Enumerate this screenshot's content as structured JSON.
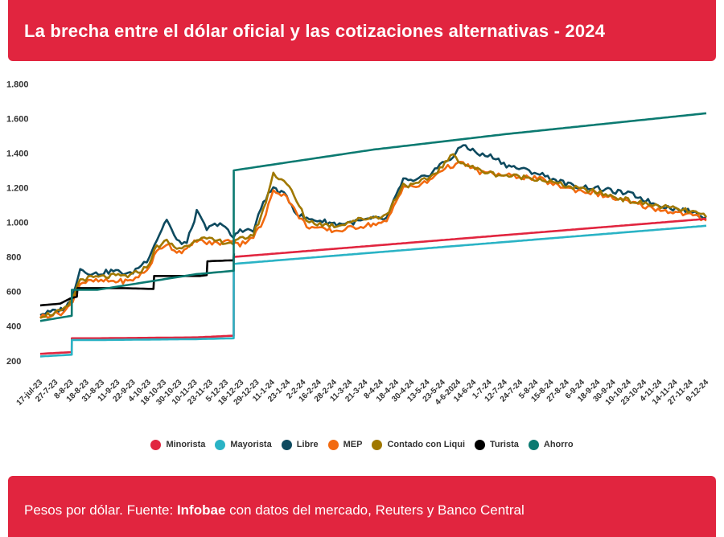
{
  "header": {
    "title": "La brecha entre el dólar oficial y las cotizaciones alternativas - 2024"
  },
  "footer": {
    "prefix": "Pesos por dólar. Fuente: ",
    "source": "Infobae",
    "suffix": " con datos del mercado, Reuters y Banco Central"
  },
  "chart_data": {
    "type": "line",
    "title": "La brecha entre el dólar oficial y las cotizaciones alternativas - 2024",
    "xlabel": "",
    "ylabel": "",
    "ylim": [
      120,
      1820
    ],
    "yticks": [
      200,
      400,
      600,
      800,
      1000,
      1200,
      1400,
      1600,
      1800
    ],
    "ytick_labels": [
      "200",
      "400",
      "600",
      "800",
      "1.000",
      "1.200",
      "1.400",
      "1.600",
      "1.800"
    ],
    "grid": false,
    "legend_position": "bottom",
    "xtick_labels": [
      "17-jul-23",
      "27-7-23",
      "8-8-23",
      "18-8-23",
      "31-8-23",
      "11-9-23",
      "22-9-23",
      "4-10-23",
      "18-10-23",
      "30-10-23",
      "10-11-23",
      "23-11-23",
      "5-12-23",
      "18-12-23",
      "29-12-23",
      "11-1-24",
      "23-1-24",
      "2-2-24",
      "16-2-24",
      "28-2-24",
      "11-3-24",
      "21-3-24",
      "8-4-24",
      "18-4-24",
      "30-4-24",
      "13-5-24",
      "23-5-24",
      "4-6-2024",
      "14-6-24",
      "1-7-24",
      "12-7-24",
      "24-7-24",
      "5-8-24",
      "15-8-24",
      "27-8-24",
      "6-9-24",
      "18-9-24",
      "30-9-24",
      "10-10-24",
      "23-10-24",
      "4-11-24",
      "14-11-24",
      "27-11-24",
      "9-12-24"
    ],
    "series": [
      {
        "name": "Minorista",
        "color": "#e1253f",
        "x": [
          0,
          0.0474,
          0.0475,
          0.0857,
          0.2333,
          0.2905,
          0.2906,
          1
        ],
        "y": [
          240,
          250,
          330,
          330,
          335,
          345,
          800,
          1020
        ]
      },
      {
        "name": "Mayorista",
        "color": "#2ab3c5",
        "x": [
          0,
          0.0474,
          0.0475,
          0.0857,
          0.2333,
          0.2905,
          0.2906,
          1
        ],
        "y": [
          225,
          235,
          320,
          320,
          325,
          330,
          760,
          980
        ]
      },
      {
        "name": "Libre",
        "color": "#0e4a5f",
        "x": [
          0,
          0.015,
          0.035,
          0.045,
          0.06,
          0.08,
          0.11,
          0.135,
          0.16,
          0.175,
          0.19,
          0.205,
          0.22,
          0.235,
          0.25,
          0.27,
          0.29,
          0.3,
          0.32,
          0.335,
          0.35,
          0.37,
          0.385,
          0.4,
          0.42,
          0.445,
          0.47,
          0.5,
          0.52,
          0.545,
          0.56,
          0.585,
          0.6,
          0.62,
          0.635,
          0.66,
          0.68,
          0.7,
          0.73,
          0.75,
          0.77,
          0.8,
          0.83,
          0.86,
          0.89,
          0.92,
          0.95,
          0.98,
          1
        ],
        "y": [
          470,
          480,
          500,
          540,
          730,
          700,
          720,
          700,
          780,
          900,
          1020,
          890,
          880,
          1060,
          960,
          1000,
          910,
          960,
          950,
          1120,
          1200,
          1150,
          1050,
          1020,
          1010,
          990,
          1000,
          1020,
          1020,
          1250,
          1230,
          1280,
          1330,
          1380,
          1450,
          1390,
          1380,
          1330,
          1300,
          1280,
          1250,
          1210,
          1200,
          1180,
          1160,
          1110,
          1080,
          1060,
          1030
        ]
      },
      {
        "name": "MEP",
        "color": "#f26a10",
        "x": [
          0,
          0.015,
          0.035,
          0.045,
          0.06,
          0.08,
          0.11,
          0.135,
          0.16,
          0.175,
          0.19,
          0.205,
          0.22,
          0.235,
          0.25,
          0.27,
          0.29,
          0.3,
          0.32,
          0.335,
          0.35,
          0.37,
          0.385,
          0.4,
          0.42,
          0.445,
          0.47,
          0.5,
          0.52,
          0.545,
          0.56,
          0.585,
          0.6,
          0.62,
          0.635,
          0.66,
          0.68,
          0.7,
          0.73,
          0.75,
          0.77,
          0.8,
          0.83,
          0.86,
          0.89,
          0.92,
          0.95,
          0.98,
          1
        ],
        "y": [
          455,
          465,
          480,
          520,
          650,
          660,
          660,
          660,
          720,
          830,
          880,
          830,
          840,
          900,
          880,
          880,
          900,
          870,
          920,
          1000,
          1190,
          1150,
          1050,
          980,
          960,
          950,
          970,
          990,
          1000,
          1210,
          1200,
          1240,
          1300,
          1330,
          1340,
          1290,
          1280,
          1270,
          1260,
          1250,
          1220,
          1190,
          1170,
          1140,
          1110,
          1080,
          1060,
          1040,
          1010
        ]
      },
      {
        "name": "Contado con Liqui",
        "color": "#a07800",
        "x": [
          0,
          0.015,
          0.035,
          0.045,
          0.06,
          0.08,
          0.11,
          0.135,
          0.16,
          0.175,
          0.19,
          0.205,
          0.22,
          0.235,
          0.25,
          0.27,
          0.29,
          0.3,
          0.32,
          0.335,
          0.35,
          0.37,
          0.385,
          0.4,
          0.42,
          0.445,
          0.47,
          0.5,
          0.52,
          0.545,
          0.56,
          0.585,
          0.6,
          0.62,
          0.635,
          0.66,
          0.68,
          0.7,
          0.73,
          0.75,
          0.77,
          0.8,
          0.83,
          0.86,
          0.89,
          0.92,
          0.95,
          0.98,
          1
        ],
        "y": [
          460,
          470,
          490,
          530,
          670,
          680,
          690,
          690,
          740,
          860,
          890,
          850,
          860,
          910,
          900,
          890,
          880,
          900,
          930,
          1070,
          1280,
          1230,
          1120,
          1010,
          990,
          980,
          1010,
          1030,
          1040,
          1220,
          1210,
          1260,
          1310,
          1390,
          1340,
          1300,
          1280,
          1270,
          1260,
          1250,
          1230,
          1200,
          1180,
          1150,
          1120,
          1100,
          1080,
          1060,
          1030
        ]
      },
      {
        "name": "Turista",
        "color": "#000000",
        "x": [
          0,
          0.03,
          0.045,
          0.055,
          0.056,
          0.085,
          0.12,
          0.17,
          0.171,
          0.2,
          0.24,
          0.25,
          0.251,
          0.285,
          0.29,
          0.291
        ],
        "y": [
          520,
          530,
          560,
          570,
          620,
          620,
          620,
          615,
          690,
          690,
          690,
          695,
          775,
          780,
          780,
          820
        ]
      },
      {
        "name": "Ahorro",
        "color": "#0b7a71",
        "x": [
          0,
          0.0474,
          0.0475,
          0.0857,
          0.2333,
          0.2905,
          0.2906,
          0.5,
          0.7,
          0.85,
          1
        ],
        "y": [
          430,
          460,
          610,
          610,
          700,
          720,
          1300,
          1420,
          1510,
          1570,
          1630
        ]
      }
    ]
  }
}
